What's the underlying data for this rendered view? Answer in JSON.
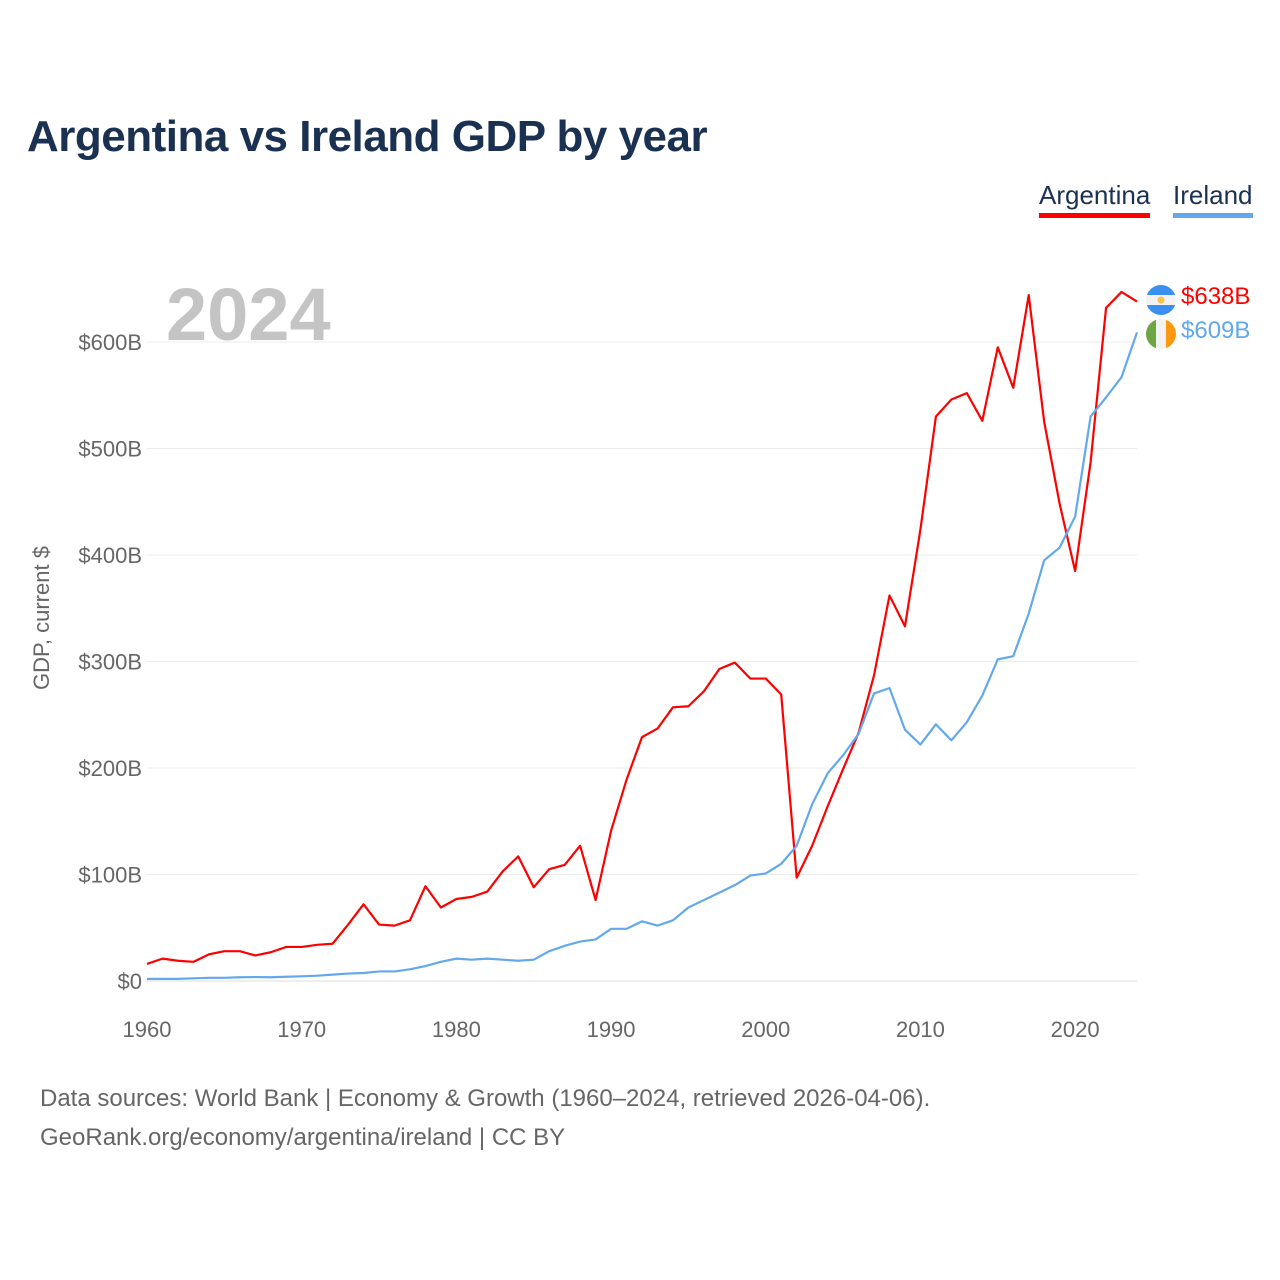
{
  "title": "Argentina vs Ireland GDP by year",
  "year_label": "2024",
  "legend": {
    "argentina": "Argentina",
    "ireland": "Ireland"
  },
  "end_labels": {
    "argentina": "$638B",
    "ireland": "$609B"
  },
  "source_line1": "Data sources: World Bank | Economy & Growth (1960–2024, retrieved 2026-04-06).",
  "source_line2": "GeoRank.org/economy/argentina/ireland | CC BY",
  "colors": {
    "argentina": "#ff0000",
    "ireland": "#64a8ec",
    "title": "#1b3152"
  },
  "icons": {
    "argentina_flag": "argentina-flag-icon",
    "ireland_flag": "ireland-flag-icon"
  },
  "chart_data": {
    "type": "line",
    "title": "Argentina vs Ireland GDP by year",
    "xlabel": "",
    "ylabel": "GDP, current $",
    "xlim": [
      1960,
      2024
    ],
    "ylim": [
      0,
      600
    ],
    "grid": true,
    "legend_position": "top-right",
    "x_ticks": [
      1960,
      1970,
      1980,
      1990,
      2000,
      2010,
      2020
    ],
    "x_tick_labels": [
      "1960",
      "1970",
      "1980",
      "1990",
      "2000",
      "2010",
      "2020"
    ],
    "y_ticks": [
      0,
      100,
      200,
      300,
      400,
      500,
      600
    ],
    "y_tick_labels": [
      "$0",
      "$100B",
      "$200B",
      "$300B",
      "$400B",
      "$500B",
      "$600B"
    ],
    "x": [
      1960,
      1961,
      1962,
      1963,
      1964,
      1965,
      1966,
      1967,
      1968,
      1969,
      1970,
      1971,
      1972,
      1973,
      1974,
      1975,
      1976,
      1977,
      1978,
      1979,
      1980,
      1981,
      1982,
      1983,
      1984,
      1985,
      1986,
      1987,
      1988,
      1989,
      1990,
      1991,
      1992,
      1993,
      1994,
      1995,
      1996,
      1997,
      1998,
      1999,
      2000,
      2001,
      2002,
      2003,
      2004,
      2005,
      2006,
      2007,
      2008,
      2009,
      2010,
      2011,
      2012,
      2013,
      2014,
      2015,
      2016,
      2017,
      2018,
      2019,
      2020,
      2021,
      2022,
      2023,
      2024
    ],
    "series": [
      {
        "name": "Argentina",
        "unit": "billion USD",
        "values": [
          16,
          21,
          19,
          18,
          25,
          28,
          28,
          24,
          27,
          32,
          32,
          34,
          35,
          53,
          72,
          53,
          52,
          57,
          89,
          69,
          77,
          79,
          84,
          103,
          117,
          88,
          105,
          109,
          127,
          76,
          141,
          189,
          229,
          237,
          257,
          258,
          272,
          293,
          299,
          284,
          284,
          269,
          97,
          127,
          164,
          199,
          233,
          287,
          362,
          333,
          424,
          530,
          546,
          552,
          526,
          595,
          557,
          644,
          525,
          448,
          385,
          487,
          632,
          647,
          638
        ]
      },
      {
        "name": "Ireland",
        "unit": "billion USD",
        "values": [
          2,
          2,
          2,
          2.5,
          3,
          3,
          3.5,
          3.7,
          3.5,
          4,
          4.4,
          5,
          6,
          7,
          7.5,
          9,
          9,
          11,
          14,
          18,
          21,
          20,
          21,
          20,
          19,
          20,
          28,
          33,
          37,
          39,
          49,
          49,
          56,
          52,
          57,
          69,
          76,
          83,
          90,
          99,
          101,
          110,
          127,
          166,
          195,
          212,
          232,
          270,
          275,
          236,
          222,
          241,
          226,
          243,
          268,
          302,
          305,
          345,
          395,
          407,
          436,
          530,
          548,
          567,
          609
        ]
      }
    ]
  }
}
